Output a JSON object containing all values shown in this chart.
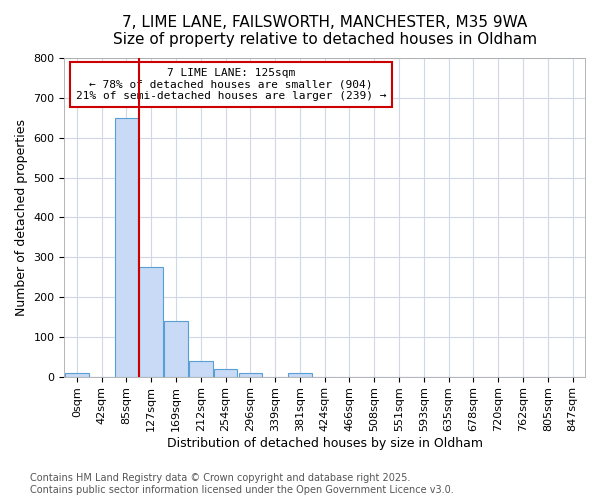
{
  "title_line1": "7, LIME LANE, FAILSWORTH, MANCHESTER, M35 9WA",
  "title_line2": "Size of property relative to detached houses in Oldham",
  "xlabel": "Distribution of detached houses by size in Oldham",
  "ylabel": "Number of detached properties",
  "bin_labels": [
    "0sqm",
    "42sqm",
    "85sqm",
    "127sqm",
    "169sqm",
    "212sqm",
    "254sqm",
    "296sqm",
    "339sqm",
    "381sqm",
    "424sqm",
    "466sqm",
    "508sqm",
    "551sqm",
    "593sqm",
    "635sqm",
    "678sqm",
    "720sqm",
    "762sqm",
    "805sqm",
    "847sqm"
  ],
  "bar_values": [
    8,
    0,
    650,
    275,
    140,
    38,
    18,
    10,
    0,
    8,
    0,
    0,
    0,
    0,
    0,
    0,
    0,
    0,
    0,
    0,
    0
  ],
  "bar_color": "#c8daf5",
  "bar_edge_color": "#5a9fd4",
  "vline_x_index": 2.5,
  "vline_color": "#cc0000",
  "annotation_text": "7 LIME LANE: 125sqm\n← 78% of detached houses are smaller (904)\n21% of semi-detached houses are larger (239) →",
  "annotation_box_color": "#cc0000",
  "annotation_text_color": "#000000",
  "ylim": [
    0,
    800
  ],
  "yticks": [
    0,
    100,
    200,
    300,
    400,
    500,
    600,
    700,
    800
  ],
  "background_color": "#ffffff",
  "grid_color": "#d0d8e8",
  "footer_text": "Contains HM Land Registry data © Crown copyright and database right 2025.\nContains public sector information licensed under the Open Government Licence v3.0.",
  "title_fontsize": 11,
  "axis_label_fontsize": 9,
  "tick_fontsize": 8,
  "footer_fontsize": 7,
  "annotation_fontsize": 8
}
